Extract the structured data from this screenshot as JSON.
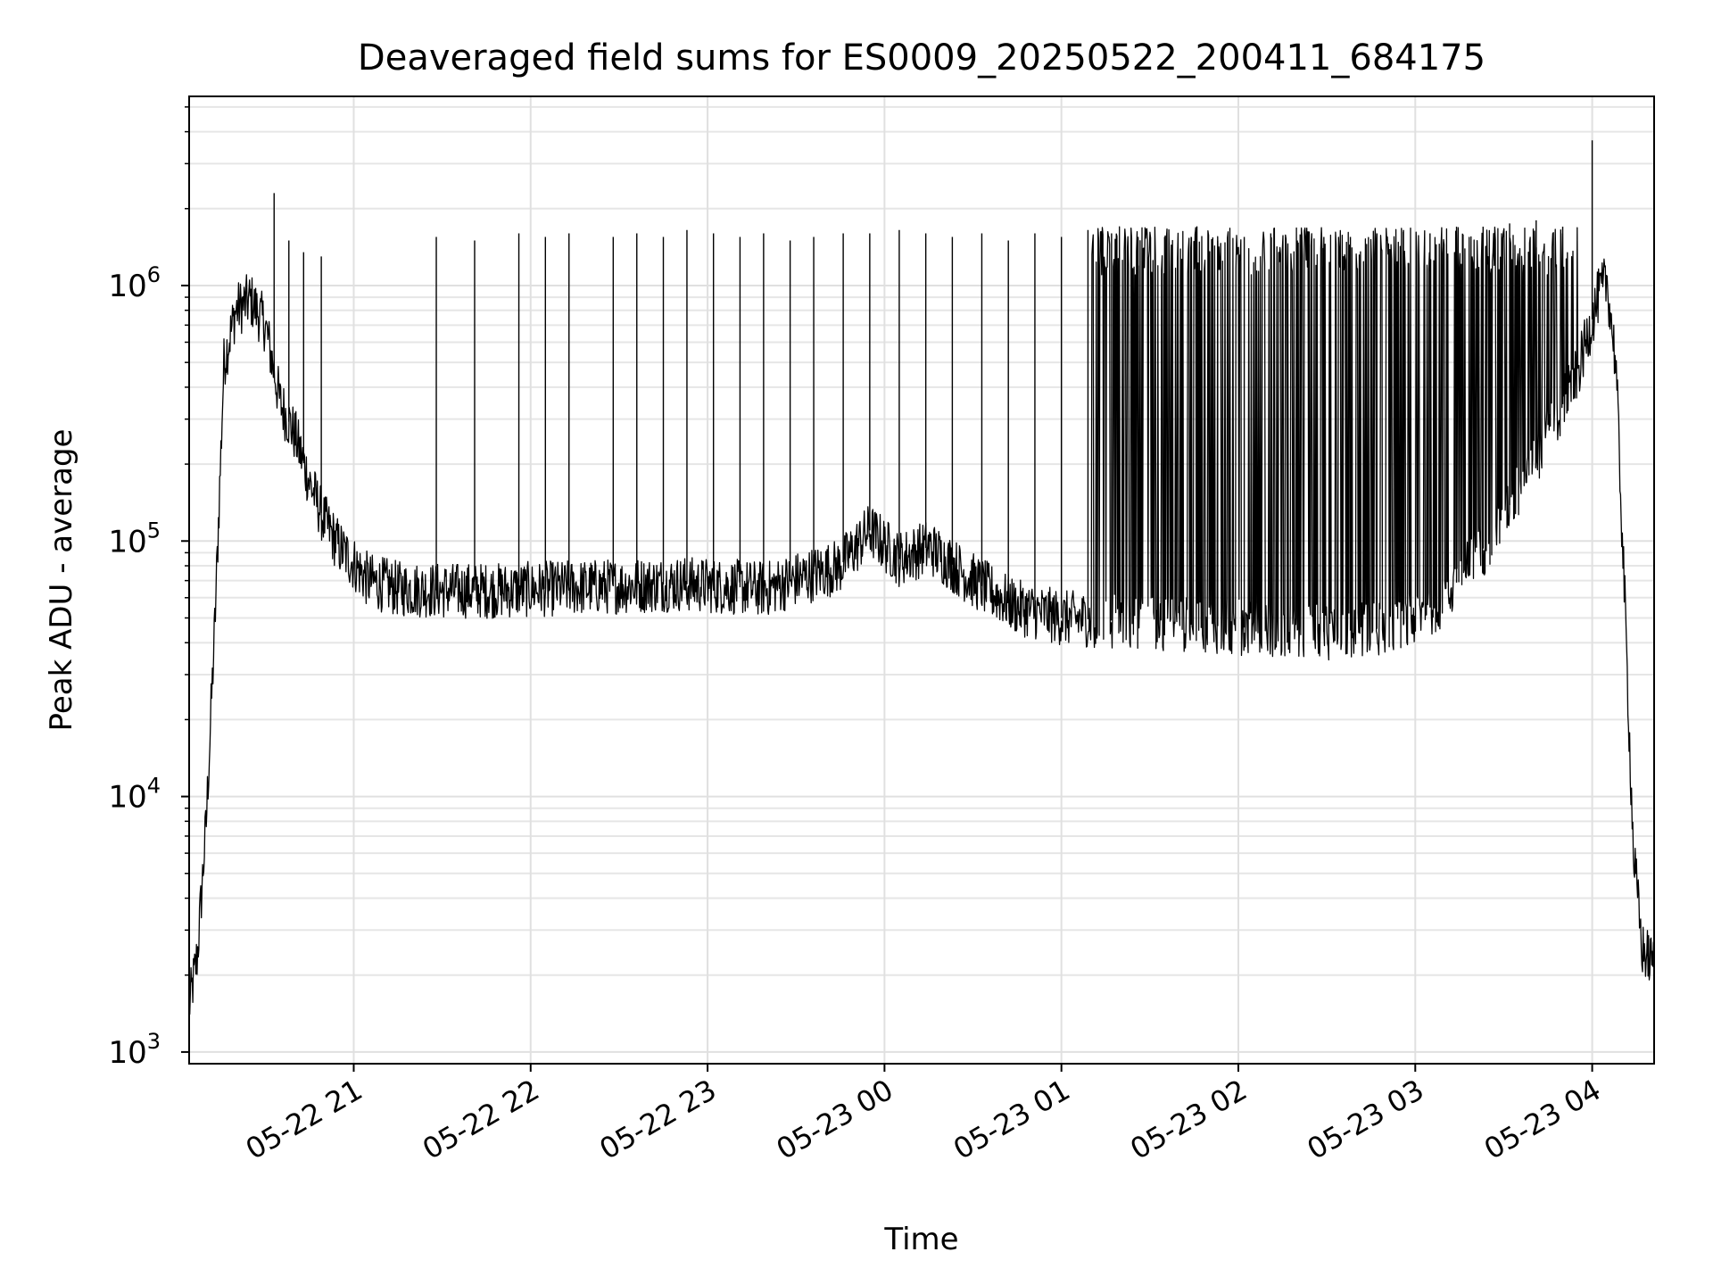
{
  "chart_data": {
    "type": "line",
    "title": "Deaveraged field sums for ES0009_20250522_200411_684175",
    "xlabel": "Time",
    "ylabel": "Peak ADU - average",
    "yscale": "log",
    "ylim": [
      900,
      5500000
    ],
    "xlim": [
      "2025-05-22 20:04:11",
      "2025-05-23 04:21:00"
    ],
    "grid": true,
    "line_color": "#000000",
    "x_ticks": [
      {
        "t": "2025-05-22 21:00",
        "label": "05-22 21"
      },
      {
        "t": "2025-05-22 22:00",
        "label": "05-22 22"
      },
      {
        "t": "2025-05-22 23:00",
        "label": "05-22 23"
      },
      {
        "t": "2025-05-23 00:00",
        "label": "05-23 00"
      },
      {
        "t": "2025-05-23 01:00",
        "label": "05-23 01"
      },
      {
        "t": "2025-05-23 02:00",
        "label": "05-23 02"
      },
      {
        "t": "2025-05-23 03:00",
        "label": "05-23 03"
      },
      {
        "t": "2025-05-23 04:00",
        "label": "05-23 04"
      }
    ],
    "y_ticks": [
      {
        "v": 1000,
        "base": "10",
        "exp": "3"
      },
      {
        "v": 10000,
        "base": "10",
        "exp": "4"
      },
      {
        "v": 100000,
        "base": "10",
        "exp": "5"
      },
      {
        "v": 1000000,
        "base": "10",
        "exp": "6"
      }
    ],
    "baseline": {
      "x": [
        "2025-05-22 20:04:11",
        "2025-05-22 20:07",
        "2025-05-22 20:10",
        "2025-05-22 20:13",
        "2025-05-22 20:16",
        "2025-05-22 20:20",
        "2025-05-22 20:25",
        "2025-05-22 20:30",
        "2025-05-22 20:35",
        "2025-05-22 20:40",
        "2025-05-22 20:45",
        "2025-05-22 20:50",
        "2025-05-22 20:55",
        "2025-05-22 21:05",
        "2025-05-22 21:15",
        "2025-05-22 21:30",
        "2025-05-22 21:50",
        "2025-05-22 22:20",
        "2025-05-22 22:50",
        "2025-05-22 23:20",
        "2025-05-22 23:45",
        "2025-05-22 23:55",
        "2025-05-23 00:05",
        "2025-05-23 00:15",
        "2025-05-23 00:30",
        "2025-05-23 00:45",
        "2025-05-23 01:00",
        "2025-05-23 01:30",
        "2025-05-23 02:00",
        "2025-05-23 02:30",
        "2025-05-23 02:55",
        "2025-05-23 03:10",
        "2025-05-23 03:25",
        "2025-05-23 03:40",
        "2025-05-23 03:55",
        "2025-05-23 04:02",
        "2025-05-23 04:05",
        "2025-05-23 04:08",
        "2025-05-23 04:11",
        "2025-05-23 04:14",
        "2025-05-23 04:17",
        "2025-05-23 04:21"
      ],
      "y": [
        1500,
        2400,
        8000,
        50000,
        500000,
        800000,
        880000,
        700000,
        350000,
        260000,
        170000,
        120000,
        95000,
        70000,
        65000,
        64000,
        64000,
        66000,
        68000,
        65000,
        80000,
        110000,
        85000,
        95000,
        70000,
        55000,
        50000,
        48000,
        46000,
        44000,
        46000,
        60000,
        100000,
        200000,
        450000,
        900000,
        1050000,
        500000,
        60000,
        6000,
        2500,
        2200
      ]
    },
    "spikes": {
      "x": [
        "2025-05-22 20:33",
        "2025-05-22 20:38",
        "2025-05-22 20:43",
        "2025-05-22 20:49",
        "2025-05-22 21:28",
        "2025-05-22 21:41",
        "2025-05-22 21:56",
        "2025-05-22 22:05",
        "2025-05-22 22:13",
        "2025-05-22 22:28",
        "2025-05-22 22:36",
        "2025-05-22 22:45",
        "2025-05-22 22:53",
        "2025-05-22 23:02",
        "2025-05-22 23:11",
        "2025-05-22 23:19",
        "2025-05-22 23:28",
        "2025-05-22 23:36",
        "2025-05-22 23:46",
        "2025-05-22 23:55",
        "2025-05-23 00:05",
        "2025-05-23 00:14",
        "2025-05-23 00:23",
        "2025-05-23 00:33",
        "2025-05-23 00:42",
        "2025-05-23 00:51",
        "2025-05-23 01:00",
        "2025-05-23 01:09",
        "2025-05-23 01:17",
        "2025-05-23 01:26",
        "2025-05-23 01:35",
        "2025-05-23 01:44",
        "2025-05-23 01:53",
        "2025-05-23 02:02",
        "2025-05-23 02:11",
        "2025-05-23 02:20",
        "2025-05-23 02:29",
        "2025-05-23 02:38",
        "2025-05-23 02:47",
        "2025-05-23 02:56",
        "2025-05-23 03:05",
        "2025-05-23 03:14",
        "2025-05-23 03:23",
        "2025-05-23 03:32",
        "2025-05-23 03:41",
        "2025-05-23 03:50",
        "2025-05-23 04:00"
      ],
      "y": [
        2300000,
        1500000,
        1350000,
        1300000,
        1550000,
        1500000,
        1600000,
        1550000,
        1600000,
        1550000,
        1600000,
        1550000,
        1650000,
        1600000,
        1550000,
        1600000,
        1500000,
        1550000,
        1600000,
        1600000,
        1650000,
        1600000,
        1550000,
        1600000,
        1500000,
        1600000,
        1550000,
        1650000,
        1600000,
        1550000,
        1550000,
        1550000,
        1500000,
        1550000,
        1600000,
        1500000,
        1550000,
        1550000,
        1600000,
        1650000,
        1600000,
        1700000,
        1700000,
        1750000,
        1800000,
        1700000,
        3700000
      ]
    }
  }
}
